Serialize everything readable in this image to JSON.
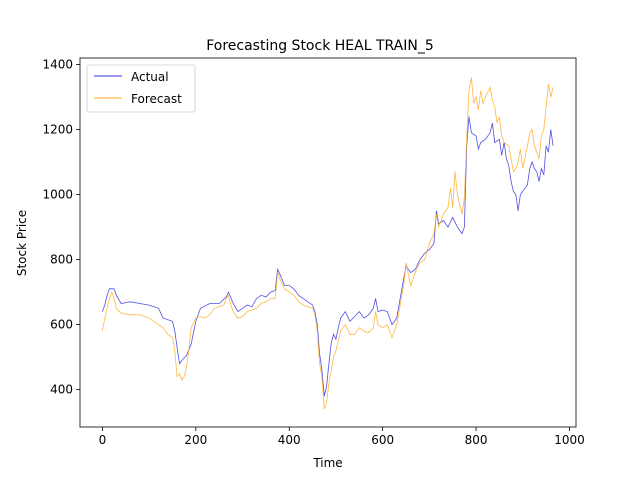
{
  "chart_data": {
    "type": "line",
    "title": "Forecasting Stock HEAL TRAIN_5",
    "xlabel": "Time",
    "ylabel": "Stock Price",
    "xlim": [
      -48,
      1014
    ],
    "ylim": [
      285,
      1420
    ],
    "x_ticks": [
      0,
      200,
      400,
      600,
      800,
      1000
    ],
    "y_ticks": [
      400,
      600,
      800,
      1000,
      1200,
      1400
    ],
    "grid": false,
    "legend": "top-left",
    "series": [
      {
        "name": "Actual",
        "color": "#3333dd",
        "points": [
          [
            0,
            640
          ],
          [
            5,
            660
          ],
          [
            10,
            690
          ],
          [
            15,
            710
          ],
          [
            25,
            710
          ],
          [
            30,
            690
          ],
          [
            40,
            665
          ],
          [
            60,
            670
          ],
          [
            80,
            665
          ],
          [
            100,
            660
          ],
          [
            120,
            650
          ],
          [
            130,
            620
          ],
          [
            150,
            610
          ],
          [
            155,
            580
          ],
          [
            160,
            530
          ],
          [
            165,
            480
          ],
          [
            170,
            490
          ],
          [
            180,
            505
          ],
          [
            190,
            540
          ],
          [
            200,
            610
          ],
          [
            210,
            650
          ],
          [
            230,
            665
          ],
          [
            250,
            665
          ],
          [
            265,
            685
          ],
          [
            270,
            700
          ],
          [
            280,
            665
          ],
          [
            290,
            640
          ],
          [
            300,
            650
          ],
          [
            310,
            660
          ],
          [
            320,
            655
          ],
          [
            330,
            680
          ],
          [
            340,
            690
          ],
          [
            350,
            685
          ],
          [
            360,
            700
          ],
          [
            370,
            705
          ],
          [
            375,
            770
          ],
          [
            380,
            755
          ],
          [
            390,
            720
          ],
          [
            400,
            720
          ],
          [
            410,
            710
          ],
          [
            420,
            690
          ],
          [
            430,
            680
          ],
          [
            440,
            670
          ],
          [
            450,
            660
          ],
          [
            455,
            640
          ],
          [
            460,
            600
          ],
          [
            465,
            510
          ],
          [
            470,
            460
          ],
          [
            475,
            380
          ],
          [
            480,
            410
          ],
          [
            485,
            480
          ],
          [
            490,
            545
          ],
          [
            495,
            570
          ],
          [
            500,
            555
          ],
          [
            505,
            590
          ],
          [
            510,
            620
          ],
          [
            520,
            640
          ],
          [
            530,
            610
          ],
          [
            540,
            625
          ],
          [
            550,
            640
          ],
          [
            560,
            620
          ],
          [
            570,
            630
          ],
          [
            580,
            650
          ],
          [
            585,
            680
          ],
          [
            590,
            640
          ],
          [
            600,
            645
          ],
          [
            610,
            640
          ],
          [
            620,
            600
          ],
          [
            630,
            620
          ],
          [
            640,
            700
          ],
          [
            650,
            780
          ],
          [
            660,
            760
          ],
          [
            670,
            770
          ],
          [
            680,
            800
          ],
          [
            690,
            820
          ],
          [
            700,
            830
          ],
          [
            710,
            850
          ],
          [
            715,
            950
          ],
          [
            720,
            910
          ],
          [
            730,
            920
          ],
          [
            740,
            900
          ],
          [
            750,
            930
          ],
          [
            760,
            900
          ],
          [
            770,
            880
          ],
          [
            775,
            900
          ],
          [
            780,
            1150
          ],
          [
            785,
            1240
          ],
          [
            790,
            1190
          ],
          [
            800,
            1180
          ],
          [
            805,
            1140
          ],
          [
            810,
            1160
          ],
          [
            820,
            1170
          ],
          [
            830,
            1190
          ],
          [
            835,
            1220
          ],
          [
            840,
            1160
          ],
          [
            850,
            1170
          ],
          [
            855,
            1120
          ],
          [
            860,
            1160
          ],
          [
            865,
            1110
          ],
          [
            870,
            1090
          ],
          [
            875,
            1040
          ],
          [
            880,
            1010
          ],
          [
            885,
            1000
          ],
          [
            890,
            950
          ],
          [
            895,
            1000
          ],
          [
            900,
            1010
          ],
          [
            910,
            1030
          ],
          [
            915,
            1080
          ],
          [
            920,
            1100
          ],
          [
            925,
            1080
          ],
          [
            930,
            1070
          ],
          [
            935,
            1040
          ],
          [
            940,
            1080
          ],
          [
            945,
            1060
          ],
          [
            950,
            1150
          ],
          [
            955,
            1130
          ],
          [
            960,
            1200
          ],
          [
            965,
            1150
          ]
        ]
      },
      {
        "name": "Forecast",
        "color": "#ffaa22",
        "points": [
          [
            0,
            580
          ],
          [
            5,
            620
          ],
          [
            10,
            650
          ],
          [
            15,
            680
          ],
          [
            20,
            700
          ],
          [
            25,
            680
          ],
          [
            30,
            650
          ],
          [
            40,
            635
          ],
          [
            60,
            630
          ],
          [
            80,
            630
          ],
          [
            100,
            620
          ],
          [
            110,
            610
          ],
          [
            120,
            600
          ],
          [
            130,
            590
          ],
          [
            140,
            570
          ],
          [
            150,
            560
          ],
          [
            155,
            520
          ],
          [
            160,
            440
          ],
          [
            165,
            450
          ],
          [
            170,
            430
          ],
          [
            175,
            440
          ],
          [
            180,
            470
          ],
          [
            185,
            520
          ],
          [
            190,
            590
          ],
          [
            200,
            620
          ],
          [
            210,
            625
          ],
          [
            220,
            620
          ],
          [
            230,
            630
          ],
          [
            240,
            650
          ],
          [
            250,
            655
          ],
          [
            260,
            660
          ],
          [
            265,
            680
          ],
          [
            270,
            690
          ],
          [
            275,
            660
          ],
          [
            280,
            640
          ],
          [
            290,
            620
          ],
          [
            300,
            625
          ],
          [
            310,
            640
          ],
          [
            320,
            645
          ],
          [
            330,
            650
          ],
          [
            340,
            665
          ],
          [
            350,
            670
          ],
          [
            360,
            680
          ],
          [
            370,
            680
          ],
          [
            375,
            760
          ],
          [
            380,
            740
          ],
          [
            390,
            710
          ],
          [
            400,
            700
          ],
          [
            410,
            690
          ],
          [
            420,
            670
          ],
          [
            430,
            660
          ],
          [
            440,
            655
          ],
          [
            450,
            650
          ],
          [
            455,
            630
          ],
          [
            460,
            580
          ],
          [
            465,
            480
          ],
          [
            470,
            440
          ],
          [
            475,
            340
          ],
          [
            480,
            360
          ],
          [
            485,
            420
          ],
          [
            490,
            460
          ],
          [
            495,
            500
          ],
          [
            500,
            520
          ],
          [
            505,
            550
          ],
          [
            510,
            580
          ],
          [
            520,
            600
          ],
          [
            530,
            570
          ],
          [
            540,
            570
          ],
          [
            550,
            590
          ],
          [
            560,
            580
          ],
          [
            570,
            575
          ],
          [
            580,
            590
          ],
          [
            585,
            640
          ],
          [
            590,
            600
          ],
          [
            600,
            590
          ],
          [
            610,
            600
          ],
          [
            620,
            560
          ],
          [
            630,
            600
          ],
          [
            640,
            680
          ],
          [
            645,
            720
          ],
          [
            650,
            790
          ],
          [
            660,
            720
          ],
          [
            670,
            760
          ],
          [
            680,
            790
          ],
          [
            690,
            800
          ],
          [
            700,
            850
          ],
          [
            710,
            880
          ],
          [
            715,
            940
          ],
          [
            720,
            900
          ],
          [
            730,
            940
          ],
          [
            740,
            960
          ],
          [
            745,
            1020
          ],
          [
            750,
            960
          ],
          [
            755,
            1070
          ],
          [
            760,
            1000
          ],
          [
            770,
            940
          ],
          [
            775,
            990
          ],
          [
            780,
            1170
          ],
          [
            785,
            1320
          ],
          [
            790,
            1360
          ],
          [
            795,
            1280
          ],
          [
            800,
            1300
          ],
          [
            805,
            1260
          ],
          [
            810,
            1320
          ],
          [
            815,
            1280
          ],
          [
            820,
            1300
          ],
          [
            830,
            1330
          ],
          [
            835,
            1290
          ],
          [
            840,
            1270
          ],
          [
            845,
            1220
          ],
          [
            850,
            1240
          ],
          [
            855,
            1180
          ],
          [
            860,
            1160
          ],
          [
            870,
            1150
          ],
          [
            875,
            1110
          ],
          [
            880,
            1070
          ],
          [
            885,
            1080
          ],
          [
            890,
            1100
          ],
          [
            895,
            1140
          ],
          [
            900,
            1080
          ],
          [
            910,
            1150
          ],
          [
            915,
            1190
          ],
          [
            920,
            1200
          ],
          [
            925,
            1150
          ],
          [
            930,
            1130
          ],
          [
            935,
            1110
          ],
          [
            940,
            1180
          ],
          [
            945,
            1200
          ],
          [
            950,
            1270
          ],
          [
            955,
            1340
          ],
          [
            960,
            1300
          ],
          [
            965,
            1330
          ]
        ]
      }
    ]
  }
}
